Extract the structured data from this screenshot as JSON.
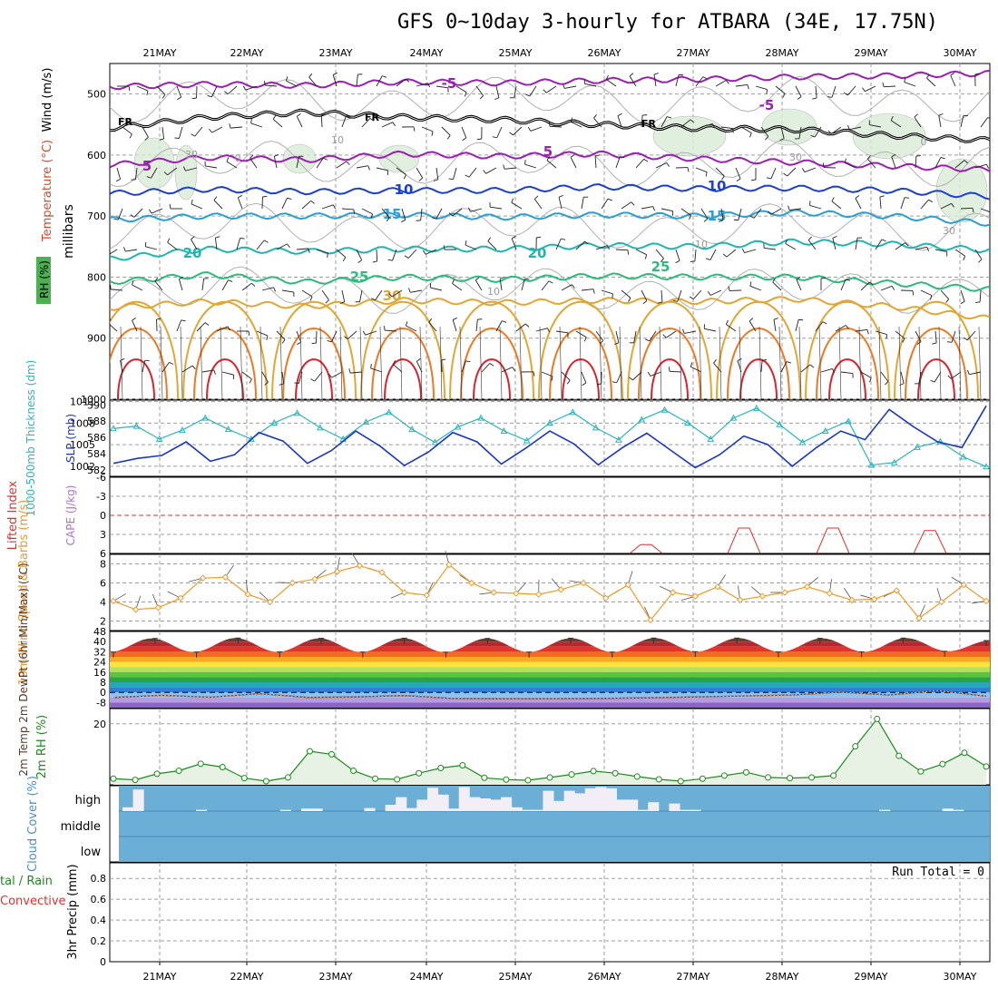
{
  "title": "GFS 0~10day 3-hourly for ATBARA (34E, 17.75N)",
  "colors": {
    "purple": "#9a1fb5",
    "black": "#000000",
    "blue_dark": "#1b3fcf",
    "blue_light": "#2a9fd6",
    "teal": "#1db7b0",
    "green": "#2dbb7a",
    "gold": "#e2a633",
    "orange": "#ea7a25",
    "red": "#d8222c",
    "thickness": "#2ab5bd",
    "slp": "#1a36c8",
    "li": "#e03030",
    "wind10m": "#f09a2a",
    "rh": "#1e8a1e",
    "rh_fill": "#e7f2e4",
    "cloud_bg": "#6baed6",
    "cloud_bar": "#f1eef5"
  },
  "chart_data": [
    {
      "type": "line",
      "panel": "upper-air",
      "ylabel_parts": [
        "Wind (m/s)",
        "Temperature (°C)",
        "RH (%)"
      ],
      "yaxis_label": "millibars",
      "x_categories": [
        "21MAY",
        "22MAY",
        "23MAY",
        "24MAY",
        "25MAY",
        "26MAY",
        "27MAY",
        "28MAY",
        "29MAY",
        "30MAY"
      ],
      "y_ticks": [
        500,
        600,
        700,
        800,
        900,
        1000
      ],
      "ylim": [
        1000,
        450
      ],
      "isotherm_labels": [
        "-5",
        "FR",
        "5",
        "10",
        "15",
        "20",
        "25",
        "30"
      ],
      "rh_labels": [
        "10",
        "30",
        "0"
      ],
      "series": [
        {
          "name": "-5",
          "levels_mb": [
            488,
            484,
            486,
            480,
            482,
            478,
            476,
            472,
            470,
            466
          ]
        },
        {
          "name": "FR",
          "levels_mb": [
            556,
            538,
            530,
            538,
            542,
            550,
            556,
            558,
            568,
            576
          ]
        },
        {
          "name": "5",
          "levels_mb": [
            616,
            604,
            608,
            598,
            602,
            598,
            606,
            612,
            618,
            624
          ]
        },
        {
          "name": "10",
          "levels_mb": [
            663,
            656,
            660,
            658,
            658,
            652,
            655,
            654,
            658,
            668
          ]
        },
        {
          "name": "15",
          "levels_mb": [
            706,
            700,
            700,
            698,
            702,
            698,
            700,
            694,
            700,
            712
          ]
        },
        {
          "name": "20",
          "levels_mb": [
            770,
            754,
            758,
            754,
            754,
            748,
            750,
            742,
            746,
            756
          ]
        },
        {
          "name": "25",
          "levels_mb": [
            808,
            796,
            808,
            800,
            804,
            798,
            800,
            800,
            810,
            820
          ]
        },
        {
          "name": "30",
          "levels_mb": [
            850,
            840,
            848,
            838,
            842,
            838,
            840,
            836,
            848,
            868
          ]
        }
      ]
    },
    {
      "type": "line",
      "panel": "thickness-slp",
      "ylabel_left": "1000-500mb Thickness (dm)",
      "ylabel_right": "SLP (mb)",
      "thickness_ticks": [
        582,
        584,
        586,
        588,
        590
      ],
      "slp_ticks": [
        1002,
        1005,
        1008,
        1011
      ],
      "series": [
        {
          "name": "1000-500mb Thickness (dm)",
          "values": [
            587.1,
            587.4,
            585.8,
            586.9,
            588.4,
            587.0,
            585.8,
            587.8,
            589.0,
            587.2,
            585.8,
            587.9,
            589.1,
            587.0,
            585.4,
            587.3,
            588.4,
            586.8,
            585.6,
            587.8,
            589.1,
            587.2,
            585.7,
            588.2,
            589.4,
            587.8,
            585.8,
            588.4,
            589.6,
            587.6,
            585.4,
            586.8,
            588.0,
            582.6,
            582.9,
            584.8,
            585.5,
            583.6,
            582.4
          ]
        },
        {
          "name": "SLP (mb)",
          "values": [
            1002.4,
            1003.1,
            1003.5,
            1005.4,
            1002.7,
            1003.6,
            1006.7,
            1005.5,
            1002.4,
            1004.2,
            1006.9,
            1004.8,
            1002.1,
            1004.0,
            1006.7,
            1005.4,
            1002.3,
            1004.5,
            1006.9,
            1005.1,
            1002.2,
            1004.6,
            1006.6,
            1004.2,
            1001.8,
            1003.6,
            1006.2,
            1005.0,
            1002.0,
            1004.6,
            1006.9,
            1005.7,
            1009.9,
            1007.5,
            1005.4,
            1004.6,
            1010.4
          ]
        }
      ]
    },
    {
      "type": "line",
      "panel": "lifted-index",
      "ylabel_left": "Lifted Index",
      "ylabel_right": "CAPE (J/kg)",
      "y_ticks": [
        -6,
        -3,
        0,
        3,
        6
      ],
      "ylim": [
        -6,
        6
      ]
    },
    {
      "type": "line",
      "panel": "wind10m",
      "ylabel": "10m Wind Speed & Barbs (m/s)",
      "y_ticks": [
        2,
        4,
        6,
        8
      ],
      "ylim": [
        1,
        9
      ],
      "series": [
        {
          "name": "10m Wind Speed",
          "values": [
            4.1,
            3.2,
            3.4,
            4.4,
            6.5,
            6.6,
            4.8,
            4.0,
            6.0,
            6.4,
            7.2,
            7.8,
            7.1,
            5.0,
            4.7,
            7.9,
            6.0,
            5.0,
            4.9,
            4.8,
            5.3,
            6.0,
            4.4,
            5.8,
            2.1,
            5.0,
            4.6,
            5.6,
            4.2,
            4.6,
            5.0,
            5.6,
            4.9,
            4.2,
            4.3,
            5.2,
            2.3,
            4.0,
            5.8,
            4.1
          ]
        }
      ]
    },
    {
      "type": "area",
      "panel": "temp2m",
      "ylabel": "2m Temp 2m DewPt (6hr Min/Max) (°C)",
      "y_ticks": [
        -8,
        0,
        8,
        16,
        24,
        32,
        40,
        48
      ],
      "ylim": [
        -12,
        48
      ],
      "series": [
        {
          "name": "2m Temp max",
          "values": [
            31.8,
            42.5,
            31.8,
            42.8,
            31.9,
            42.6,
            31.8,
            42.7,
            31.7,
            42.5,
            31.8,
            42.7,
            31.8,
            42.8,
            32.1,
            42.8,
            31.9,
            42.6,
            32.0,
            42.8,
            32.4,
            40.8
          ]
        },
        {
          "name": "2m DewPt",
          "values": [
            -4.0,
            -2.3,
            -3.8,
            -0.9,
            -3.9,
            -3.6,
            -2.5,
            -4.8,
            -5.0,
            -4.9,
            -4.7,
            -4.3,
            -3.6,
            -2.8,
            -2.0,
            0.2,
            -2.0,
            1.4,
            -3.0
          ]
        }
      ]
    },
    {
      "type": "line",
      "panel": "rh2m",
      "ylabel": "2m RH (%)",
      "y_ticks": [
        20
      ],
      "ylim": [
        0,
        25
      ],
      "series": [
        {
          "name": "2m RH",
          "values": [
            2.0,
            1.6,
            3.6,
            4.6,
            6.9,
            5.8,
            2.2,
            1.2,
            2.4,
            11.0,
            10.0,
            4.6,
            2.0,
            1.8,
            3.8,
            5.5,
            6.4,
            2.3,
            1.7,
            1.5,
            2.4,
            3.4,
            4.5,
            3.8,
            2.7,
            1.8,
            1.2,
            2.0,
            3.0,
            4.1,
            2.4,
            2.2,
            2.4,
            3.0,
            12.6,
            21.6,
            9.5,
            4.4,
            6.8,
            10.5,
            6.0
          ]
        }
      ]
    },
    {
      "type": "bar",
      "panel": "cloud-cover",
      "ylabel": "Cloud Cover (%)",
      "levels": [
        "high",
        "middle",
        "low"
      ],
      "series": [
        {
          "name": "high",
          "values": [
            0.15,
            0.85,
            0,
            0,
            0,
            0,
            0,
            0.05,
            0,
            0,
            0,
            0,
            0,
            0,
            0,
            0.05,
            0,
            0.1,
            0.1,
            0,
            0,
            0,
            0,
            0.12,
            0,
            0.25,
            0.55,
            0.12,
            0.45,
            0.92,
            0.65,
            0.1,
            0.95,
            0.55,
            0.5,
            0.45,
            0.55,
            0.15,
            0.05,
            0.05,
            0.8,
            0.4,
            0.8,
            0.7,
            0.9,
            0.95,
            0.9,
            0.45,
            0.45,
            0.05,
            0.35,
            0,
            0.3,
            0.05,
            0.05,
            0,
            0,
            0,
            0,
            0,
            0,
            0,
            0,
            0,
            0,
            0,
            0,
            0,
            0,
            0,
            0,
            0,
            0.05,
            0,
            0,
            0,
            0,
            0,
            0.1,
            0.05,
            0,
            0
          ]
        }
      ]
    },
    {
      "type": "bar",
      "panel": "precip",
      "ylabel": "3hr Precip (mm)",
      "legend_left": [
        "tal / Rain",
        "Convective"
      ],
      "annotation": "Run Total = 0",
      "y_ticks": [
        "0",
        "0.2",
        "0.4",
        "0.6",
        "0.8"
      ],
      "ylim": [
        0,
        0.95
      ],
      "values": []
    }
  ]
}
